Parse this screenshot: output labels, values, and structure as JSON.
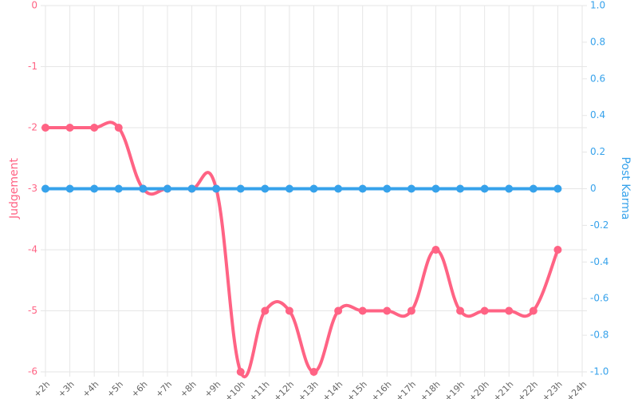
{
  "chart_data": {
    "type": "line",
    "categories": [
      "+2h",
      "+3h",
      "+4h",
      "+5h",
      "+6h",
      "+7h",
      "+8h",
      "+9h",
      "+10h",
      "+11h",
      "+12h",
      "+13h",
      "+14h",
      "+15h",
      "+16h",
      "+17h",
      "+18h",
      "+19h",
      "+20h",
      "+21h",
      "+22h",
      "+23h",
      "+24h"
    ],
    "series": [
      {
        "name": "Judgement",
        "color": "#ff6384",
        "axis": "y",
        "values": [
          -2,
          -2,
          -2,
          -2,
          -3,
          -3,
          -3,
          -3,
          -6,
          -5,
          -5,
          -6,
          -5,
          -5,
          -5,
          -5,
          -4,
          -5,
          -5,
          -5,
          -5,
          -4,
          null
        ]
      },
      {
        "name": "Post Karma",
        "color": "#36a2eb",
        "axis": "y2",
        "values": [
          0,
          0,
          0,
          0,
          0,
          0,
          0,
          0,
          0,
          0,
          0,
          0,
          0,
          0,
          0,
          0,
          0,
          0,
          0,
          0,
          0,
          0,
          null
        ]
      }
    ],
    "ylabel": "Judgement",
    "y2label": "Post Karma",
    "ylim": [
      -6,
      0
    ],
    "yticks": [
      0,
      -1,
      -2,
      -3,
      -4,
      -5,
      -6
    ],
    "y2lim": [
      -1,
      1
    ],
    "y2ticks": [
      {
        "value": 1,
        "label": "1.0"
      },
      0.8,
      0.6,
      0.4,
      0.2,
      0,
      -0.2,
      -0.4,
      -0.6,
      -0.8,
      {
        "value": -1,
        "label": "-1.0"
      }
    ],
    "grid": true,
    "smooth": true
  }
}
